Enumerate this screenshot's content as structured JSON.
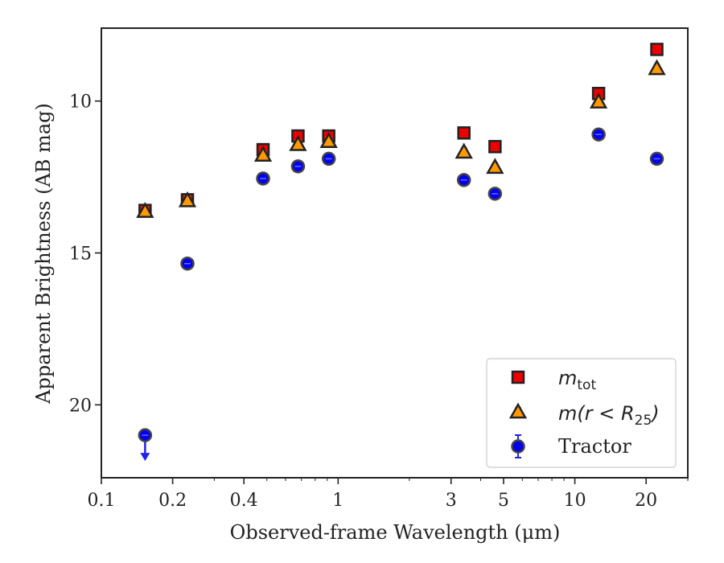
{
  "chart_data": {
    "type": "scatter",
    "title": "",
    "xlabel": "Observed-frame Wavelength (μm)",
    "ylabel": "Apparent Brightness (AB mag)",
    "xscale": "log",
    "xlim": [
      0.1,
      30
    ],
    "ylim": [
      22.4,
      7.6
    ],
    "y_inverted": true,
    "x_ticks": [
      0.1,
      0.2,
      0.4,
      1,
      3,
      5,
      10,
      20
    ],
    "x_tick_labels": [
      "0.1",
      "0.2",
      "0.4",
      "1",
      "3",
      "5",
      "10",
      "20"
    ],
    "y_ticks": [
      10,
      15,
      20
    ],
    "y_tick_labels": [
      "10",
      "15",
      "20"
    ],
    "grid": false,
    "legend_position": "lower-right",
    "series": [
      {
        "key": "mtot",
        "legend_base": "m",
        "legend_sub": "tot",
        "marker": "square",
        "color": "#ee0000",
        "points": [
          {
            "x": 0.153,
            "y": 13.6
          },
          {
            "x": 0.231,
            "y": 13.25
          },
          {
            "x": 0.482,
            "y": 11.6
          },
          {
            "x": 0.677,
            "y": 11.15
          },
          {
            "x": 0.913,
            "y": 11.15
          },
          {
            "x": 3.4,
            "y": 11.05
          },
          {
            "x": 4.6,
            "y": 11.5
          },
          {
            "x": 12.6,
            "y": 9.75
          },
          {
            "x": 22.2,
            "y": 8.3
          }
        ]
      },
      {
        "key": "mr25",
        "legend_base": "m",
        "legend_expr": "(r < R",
        "legend_sub": "25",
        "legend_close": ")",
        "marker": "triangle",
        "color": "#ff9900",
        "points": [
          {
            "x": 0.153,
            "y": 13.65
          },
          {
            "x": 0.231,
            "y": 13.3
          },
          {
            "x": 0.482,
            "y": 11.8
          },
          {
            "x": 0.677,
            "y": 11.45
          },
          {
            "x": 0.913,
            "y": 11.35
          },
          {
            "x": 3.4,
            "y": 11.7
          },
          {
            "x": 4.6,
            "y": 12.2
          },
          {
            "x": 12.6,
            "y": 10.05
          },
          {
            "x": 22.2,
            "y": 8.95
          }
        ]
      },
      {
        "key": "tractor",
        "name": "Tractor",
        "marker": "circle",
        "color": "#0000ee",
        "points": [
          {
            "x": 0.153,
            "y": 21.0,
            "upper_limit": true
          },
          {
            "x": 0.231,
            "y": 15.35
          },
          {
            "x": 0.482,
            "y": 12.55
          },
          {
            "x": 0.677,
            "y": 12.15
          },
          {
            "x": 0.913,
            "y": 11.9
          },
          {
            "x": 3.4,
            "y": 12.6
          },
          {
            "x": 4.6,
            "y": 13.05
          },
          {
            "x": 12.6,
            "y": 11.1
          },
          {
            "x": 22.2,
            "y": 11.9
          }
        ]
      }
    ]
  }
}
